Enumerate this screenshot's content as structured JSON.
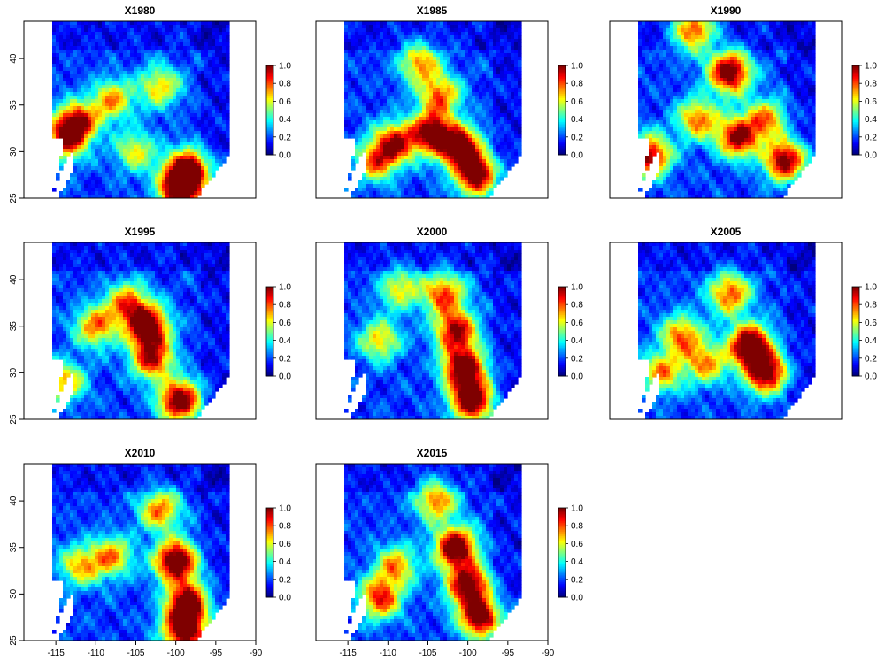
{
  "figure": {
    "palette": [
      "#00007f",
      "#0000ff",
      "#007fff",
      "#00ffff",
      "#7fff7f",
      "#ffff00",
      "#ff7f00",
      "#ff0000",
      "#7f0000"
    ],
    "colorbar_ticks": [
      "0.0",
      "0.2",
      "0.4",
      "0.6",
      "0.8",
      "1.0"
    ],
    "x_ticks": [
      "-115",
      "-110",
      "-105",
      "-100",
      "-95",
      "-90"
    ],
    "y_ticks": [
      "25",
      "30",
      "35",
      "40"
    ],
    "panels": [
      {
        "title": "X1980",
        "hotspots": [
          [
            -112.5,
            33,
            0.85
          ],
          [
            -98.5,
            28,
            0.95
          ],
          [
            -99.5,
            25.8,
            0.9
          ],
          [
            -108,
            35.5,
            0.55
          ],
          [
            -102,
            37,
            0.5
          ],
          [
            -114,
            31,
            0.55
          ],
          [
            -105,
            30,
            0.45
          ]
        ]
      },
      {
        "title": "X1985",
        "hotspots": [
          [
            -101,
            30.5,
            0.9
          ],
          [
            -99,
            27.5,
            0.9
          ],
          [
            -104.5,
            32,
            0.85
          ],
          [
            -109,
            31,
            0.7
          ],
          [
            -111.5,
            29,
            0.6
          ],
          [
            -106,
            39.5,
            0.55
          ],
          [
            -103.5,
            36,
            0.6
          ]
        ]
      },
      {
        "title": "X1990",
        "hotspots": [
          [
            -104,
            38.5,
            0.95
          ],
          [
            -114,
            29.5,
            0.85
          ],
          [
            -97,
            29,
            0.9
          ],
          [
            -103,
            31.5,
            0.8
          ],
          [
            -108,
            33.5,
            0.6
          ],
          [
            -108.5,
            43,
            0.7
          ],
          [
            -99.5,
            33.5,
            0.55
          ]
        ]
      },
      {
        "title": "X1995",
        "hotspots": [
          [
            -103.5,
            35,
            0.95
          ],
          [
            -99.5,
            27,
            0.95
          ],
          [
            -110,
            35,
            0.6
          ],
          [
            -106,
            37.5,
            0.6
          ],
          [
            -114,
            29,
            0.55
          ],
          [
            -103,
            31.5,
            0.75
          ]
        ]
      },
      {
        "title": "X2000",
        "hotspots": [
          [
            -100.5,
            30.5,
            0.95
          ],
          [
            -99.5,
            27,
            0.95
          ],
          [
            -101.5,
            34.5,
            0.8
          ],
          [
            -103,
            38.5,
            0.65
          ],
          [
            -111,
            33.5,
            0.5
          ],
          [
            -108.5,
            39,
            0.45
          ]
        ]
      },
      {
        "title": "X2005",
        "hotspots": [
          [
            -101.5,
            33,
            1.0
          ],
          [
            -99.5,
            30,
            0.9
          ],
          [
            -104,
            38.5,
            0.65
          ],
          [
            -110,
            34,
            0.6
          ],
          [
            -112.5,
            30,
            0.55
          ],
          [
            -107,
            31,
            0.55
          ]
        ]
      },
      {
        "title": "X2010",
        "hotspots": [
          [
            -100,
            33.5,
            1.0
          ],
          [
            -98.5,
            29,
            0.95
          ],
          [
            -99,
            26,
            0.9
          ],
          [
            -102,
            39,
            0.6
          ],
          [
            -108,
            34,
            0.55
          ],
          [
            -112,
            33,
            0.5
          ]
        ]
      },
      {
        "title": "X2015",
        "hotspots": [
          [
            -101.5,
            35,
            0.95
          ],
          [
            -100,
            31,
            0.9
          ],
          [
            -98.5,
            27.5,
            0.9
          ],
          [
            -111,
            29.5,
            0.7
          ],
          [
            -104,
            40,
            0.6
          ],
          [
            -109,
            33,
            0.55
          ]
        ]
      }
    ]
  }
}
